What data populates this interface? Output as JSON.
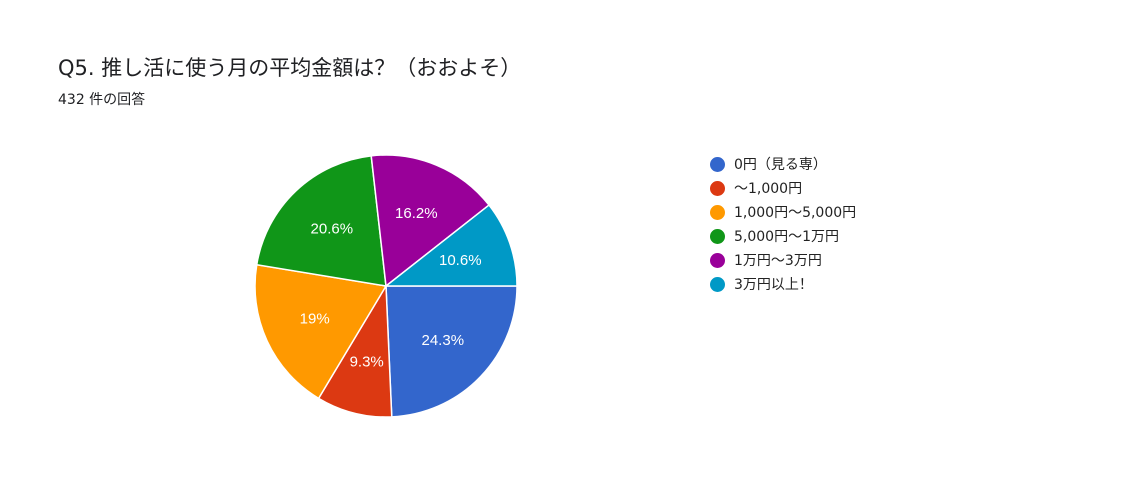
{
  "title": "Q5. 推し活に使う月の平均金額は？（おおよそ）",
  "subtitle": "432 件の回答",
  "chart_data": {
    "type": "pie",
    "title": "Q5. 推し活に使う月の平均金額は？（おおよそ）",
    "subtitle": "432 件の回答",
    "legend_position": "right",
    "slices": [
      {
        "label": "0円（見る専）",
        "value": 24.3,
        "display": "24.3%",
        "color": "#3366cc"
      },
      {
        "label": "〜1,000円",
        "value": 9.3,
        "display": "9.3%",
        "color": "#dc3912"
      },
      {
        "label": "1,000円〜5,000円",
        "value": 19.0,
        "display": "19%",
        "color": "#ff9900"
      },
      {
        "label": "5,000円〜1万円",
        "value": 20.6,
        "display": "20.6%",
        "color": "#109618"
      },
      {
        "label": "1万円〜3万円",
        "value": 16.2,
        "display": "16.2%",
        "color": "#990099"
      },
      {
        "label": "3万円以上！",
        "value": 10.6,
        "display": "10.6%",
        "color": "#0099c6"
      }
    ]
  }
}
